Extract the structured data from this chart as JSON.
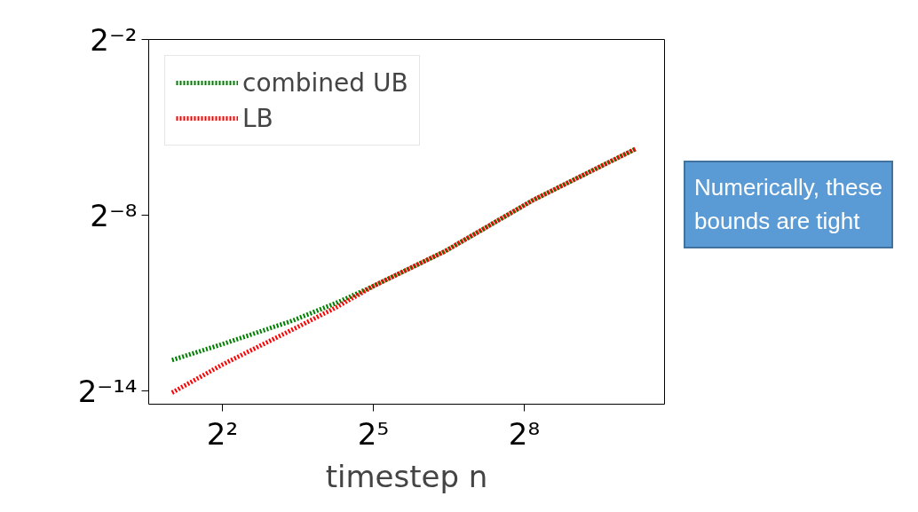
{
  "chart_data": {
    "type": "line",
    "xlabel": "timestep n",
    "log": "xy",
    "grid": false,
    "legend": "top left",
    "line_style": "dotted",
    "marker": "none",
    "x": [
      2,
      4,
      10.6,
      19.6,
      32,
      85,
      290,
      1190
    ],
    "series": [
      {
        "name": "combined UB",
        "color": "#008000",
        "values": [
          0.000127,
          0.000185,
          0.000324,
          0.000498,
          0.00073,
          0.00165,
          0.0056,
          0.0188
        ]
      },
      {
        "name": "LB",
        "color": "#ff0000",
        "values": [
          5.87e-05,
          0.000114,
          0.000263,
          0.00045,
          0.00073,
          0.00165,
          0.0056,
          0.0188
        ]
      }
    ],
    "xlim": [
      1.45,
      1770
    ],
    "ylim": [
      4.47e-05,
      0.25
    ],
    "xticks": [
      {
        "value": 4,
        "label": "2²"
      },
      {
        "value": 32,
        "label": "2⁵"
      },
      {
        "value": 256,
        "label": "2⁸"
      }
    ],
    "yticks": [
      {
        "value": 0.25,
        "label": "2⁻²"
      },
      {
        "value": 0.00390625,
        "label": "2⁻⁸"
      },
      {
        "value": 6.103515625e-05,
        "label": "2⁻¹⁴"
      }
    ],
    "annotations": [
      "Numerically, these bounds are tight"
    ]
  }
}
